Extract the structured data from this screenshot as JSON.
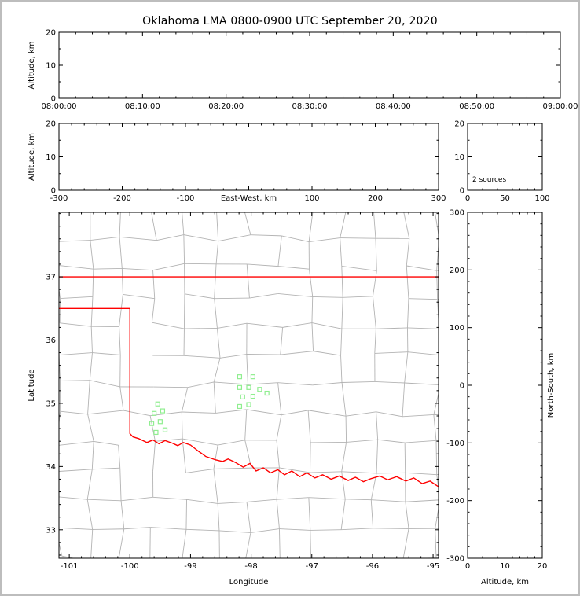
{
  "title": "Oklahoma LMA 0800-0900 UTC September 20, 2020",
  "colors": {
    "frame": "#bdbdbd",
    "axis": "#000000",
    "text": "#000000",
    "county_line": "#b3b3b3",
    "state_border": "#ff0000",
    "station": "#90ee90",
    "background": "#ffffff"
  },
  "chart_data": [
    {
      "id": "time_height",
      "name": "Altitude vs Time panel",
      "type": "scatter",
      "x_axis": {
        "min": 0,
        "max": 3600,
        "major": [
          [
            0,
            "08:00:00"
          ],
          [
            600,
            "08:10:00"
          ],
          [
            1200,
            "08:20:00"
          ],
          [
            1800,
            "08:30:00"
          ],
          [
            2400,
            "08:40:00"
          ],
          [
            3000,
            "08:50:00"
          ],
          [
            3600,
            "09:00:00"
          ]
        ],
        "minor_step": 120,
        "label": ""
      },
      "y_axis": {
        "min": 0,
        "max": 20,
        "major": [
          [
            0,
            "0"
          ],
          [
            10,
            "10"
          ],
          [
            20,
            "20"
          ]
        ],
        "minor_step": 5,
        "label": "Altitude, km",
        "label_side": "left"
      },
      "points": []
    },
    {
      "id": "ew_height",
      "name": "Altitude vs East-West panel",
      "type": "scatter",
      "x_axis": {
        "min": -300,
        "max": 300,
        "major": [
          [
            -300,
            "-300"
          ],
          [
            -200,
            "-200"
          ],
          [
            -100,
            "-100"
          ],
          [
            0,
            ""
          ],
          [
            100,
            "100"
          ],
          [
            200,
            "200"
          ],
          [
            300,
            "300"
          ]
        ],
        "minor_step": 20,
        "label": "East-West, km",
        "label_inline": true
      },
      "y_axis": {
        "min": 0,
        "max": 20,
        "major": [
          [
            0,
            "0"
          ],
          [
            10,
            "10"
          ],
          [
            20,
            "20"
          ]
        ],
        "minor_step": 5,
        "label": "Altitude, km",
        "label_side": "left"
      },
      "points": []
    },
    {
      "id": "alt_hist",
      "name": "Altitude histogram panel",
      "type": "scatter",
      "x_axis": {
        "min": 0,
        "max": 100,
        "major": [
          [
            0,
            "0"
          ],
          [
            50,
            "50"
          ],
          [
            100,
            "100"
          ]
        ],
        "minor_step": 10,
        "label": ""
      },
      "y_axis": {
        "min": 0,
        "max": 20,
        "major": [
          [
            0,
            "0"
          ],
          [
            10,
            "10"
          ],
          [
            20,
            "20"
          ]
        ],
        "minor_step": 5,
        "label": "",
        "label_side": "left"
      },
      "annotation": "2 sources",
      "points": []
    },
    {
      "id": "plan_view",
      "name": "Plan view map panel",
      "type": "map",
      "x_axis": {
        "min": -101.17,
        "max": -94.91,
        "major": [
          [
            -101,
            "-101"
          ],
          [
            -100,
            "-100"
          ],
          [
            -99,
            "-99"
          ],
          [
            -98,
            "-98"
          ],
          [
            -97,
            "-97"
          ],
          [
            -96,
            "-96"
          ],
          [
            -95,
            "-95"
          ]
        ],
        "minor_step": 0.2,
        "label": "Longitude"
      },
      "y_axis": {
        "min": 32.55,
        "max": 38.02,
        "major": [
          [
            33,
            "33"
          ],
          [
            34,
            "34"
          ],
          [
            35,
            "35"
          ],
          [
            36,
            "36"
          ],
          [
            37,
            "37"
          ]
        ],
        "minor_step": 0.2,
        "label": "Latitude",
        "label_side": "left"
      },
      "features": {
        "county_grid": {
          "cell_w": 0.52,
          "cell_h": 0.46,
          "jitter": 0.12,
          "seed": 11,
          "skip": 0.1
        },
        "state_border": [
          [
            [
              -101.17,
              37.0
            ],
            [
              -94.91,
              37.0
            ]
          ],
          [
            [
              -101.17,
              36.5
            ],
            [
              -100.0,
              36.5
            ],
            [
              -100.0,
              34.52
            ],
            [
              -99.95,
              34.47
            ],
            [
              -99.85,
              34.44
            ],
            [
              -99.72,
              34.38
            ],
            [
              -99.62,
              34.42
            ],
            [
              -99.52,
              34.36
            ],
            [
              -99.42,
              34.41
            ],
            [
              -99.3,
              34.37
            ],
            [
              -99.21,
              34.33
            ],
            [
              -99.12,
              34.38
            ],
            [
              -99.0,
              34.34
            ],
            [
              -98.88,
              34.25
            ],
            [
              -98.75,
              34.16
            ],
            [
              -98.6,
              34.11
            ],
            [
              -98.47,
              34.08
            ],
            [
              -98.38,
              34.12
            ],
            [
              -98.25,
              34.06
            ],
            [
              -98.13,
              33.99
            ],
            [
              -98.02,
              34.05
            ],
            [
              -97.92,
              33.93
            ],
            [
              -97.8,
              33.98
            ],
            [
              -97.68,
              33.9
            ],
            [
              -97.56,
              33.95
            ],
            [
              -97.45,
              33.87
            ],
            [
              -97.33,
              33.93
            ],
            [
              -97.2,
              33.84
            ],
            [
              -97.08,
              33.9
            ],
            [
              -96.95,
              33.82
            ],
            [
              -96.82,
              33.87
            ],
            [
              -96.68,
              33.8
            ],
            [
              -96.55,
              33.85
            ],
            [
              -96.4,
              33.78
            ],
            [
              -96.28,
              33.83
            ],
            [
              -96.15,
              33.76
            ],
            [
              -96.02,
              33.81
            ],
            [
              -95.88,
              33.85
            ],
            [
              -95.75,
              33.79
            ],
            [
              -95.6,
              33.84
            ],
            [
              -95.45,
              33.77
            ],
            [
              -95.32,
              33.82
            ],
            [
              -95.18,
              33.73
            ],
            [
              -95.05,
              33.77
            ],
            [
              -94.91,
              33.68
            ]
          ]
        ],
        "stations": [
          [
            -98.19,
            35.42
          ],
          [
            -97.97,
            35.42
          ],
          [
            -98.19,
            35.25
          ],
          [
            -98.04,
            35.25
          ],
          [
            -97.86,
            35.22
          ],
          [
            -98.14,
            35.1
          ],
          [
            -97.97,
            35.11
          ],
          [
            -98.19,
            34.95
          ],
          [
            -98.04,
            34.98
          ],
          [
            -97.74,
            35.16
          ],
          [
            -99.54,
            34.99
          ],
          [
            -99.6,
            34.84
          ],
          [
            -99.46,
            34.88
          ],
          [
            -99.64,
            34.68
          ],
          [
            -99.5,
            34.71
          ],
          [
            -99.57,
            34.54
          ],
          [
            -99.42,
            34.58
          ]
        ]
      },
      "points": []
    },
    {
      "id": "ns_altitude",
      "name": "North-South vs Altitude panel",
      "type": "scatter",
      "x_axis": {
        "min": 0,
        "max": 20,
        "major": [
          [
            0,
            "0"
          ],
          [
            10,
            "10"
          ],
          [
            20,
            "20"
          ]
        ],
        "minor_step": 2,
        "label": "Altitude, km"
      },
      "y_axis": {
        "min": -300,
        "max": 300,
        "major": [
          [
            -300,
            "-300"
          ],
          [
            -200,
            "-200"
          ],
          [
            -100,
            "-100"
          ],
          [
            0,
            "0"
          ],
          [
            100,
            "100"
          ],
          [
            200,
            "200"
          ],
          [
            300,
            "300"
          ]
        ],
        "minor_step": 20,
        "label": "North-South, km",
        "label_side": "right"
      },
      "points": []
    }
  ]
}
